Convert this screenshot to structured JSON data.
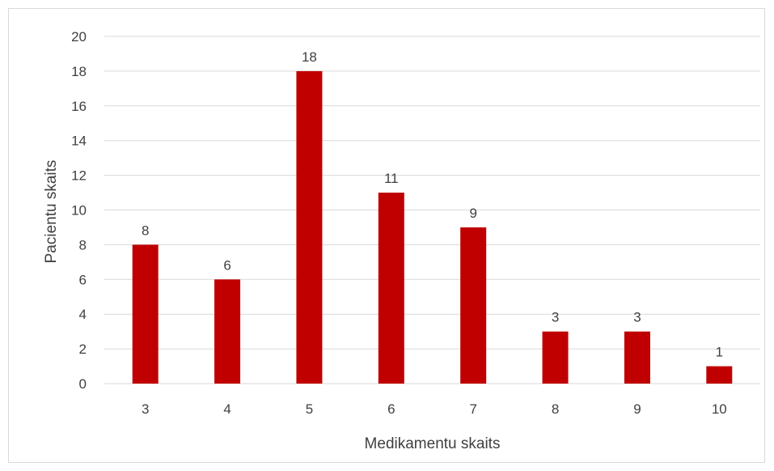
{
  "chart_data": {
    "type": "bar",
    "title": "",
    "xlabel": "Medikamentu skaits",
    "ylabel": "Pacientu skaits",
    "categories": [
      "3",
      "4",
      "5",
      "6",
      "7",
      "8",
      "9",
      "10"
    ],
    "values": [
      8,
      6,
      18,
      11,
      9,
      3,
      3,
      1
    ],
    "ylim": [
      0,
      20
    ],
    "yticks": [
      0,
      2,
      4,
      6,
      8,
      10,
      12,
      14,
      16,
      18,
      20
    ],
    "grid": true,
    "legend": "none",
    "data_labels": true,
    "bar_color": "#c00000",
    "grid_color": "#d9d9d9",
    "text_color": "#404040"
  }
}
